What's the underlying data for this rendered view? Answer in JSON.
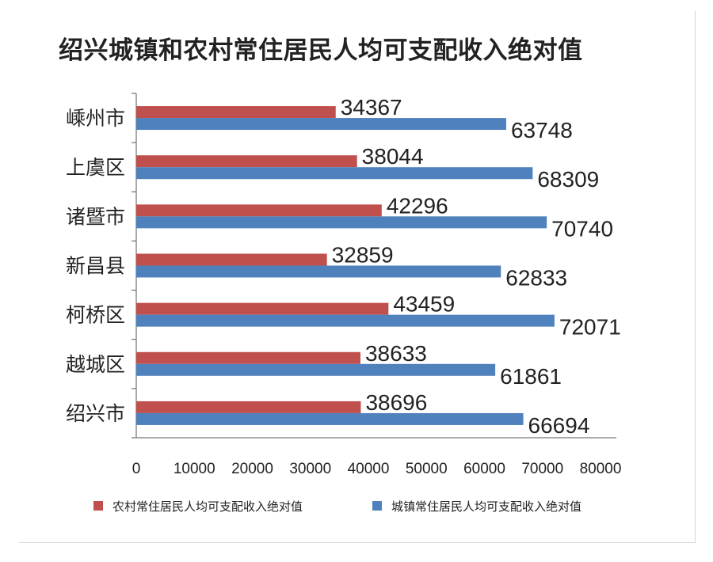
{
  "title": "绍兴城镇和农村常住居民人均可支配收入绝对值",
  "chart_data": {
    "type": "bar",
    "orientation": "horizontal",
    "title": "绍兴城镇和农村常住居民人均可支配收入绝对值",
    "categories": [
      "嵊州市",
      "上虞区",
      "诸暨市",
      "新昌县",
      "柯桥区",
      "越城区",
      "绍兴市"
    ],
    "series": [
      {
        "name": "农村常住居民人均可支配收入绝对值",
        "color": "#c0504d",
        "values": [
          34367,
          38044,
          42296,
          32859,
          43459,
          38633,
          38696
        ]
      },
      {
        "name": "城镇常住居民人均可支配收入绝对值",
        "color": "#4f81bd",
        "values": [
          63748,
          68309,
          70740,
          62833,
          72071,
          61861,
          66694
        ]
      }
    ],
    "xlim": [
      0,
      80000
    ],
    "xticks": [
      "0",
      "10000",
      "20000",
      "30000",
      "40000",
      "50000",
      "60000",
      "70000",
      "80000"
    ],
    "grid": false,
    "legend_position": "bottom"
  }
}
